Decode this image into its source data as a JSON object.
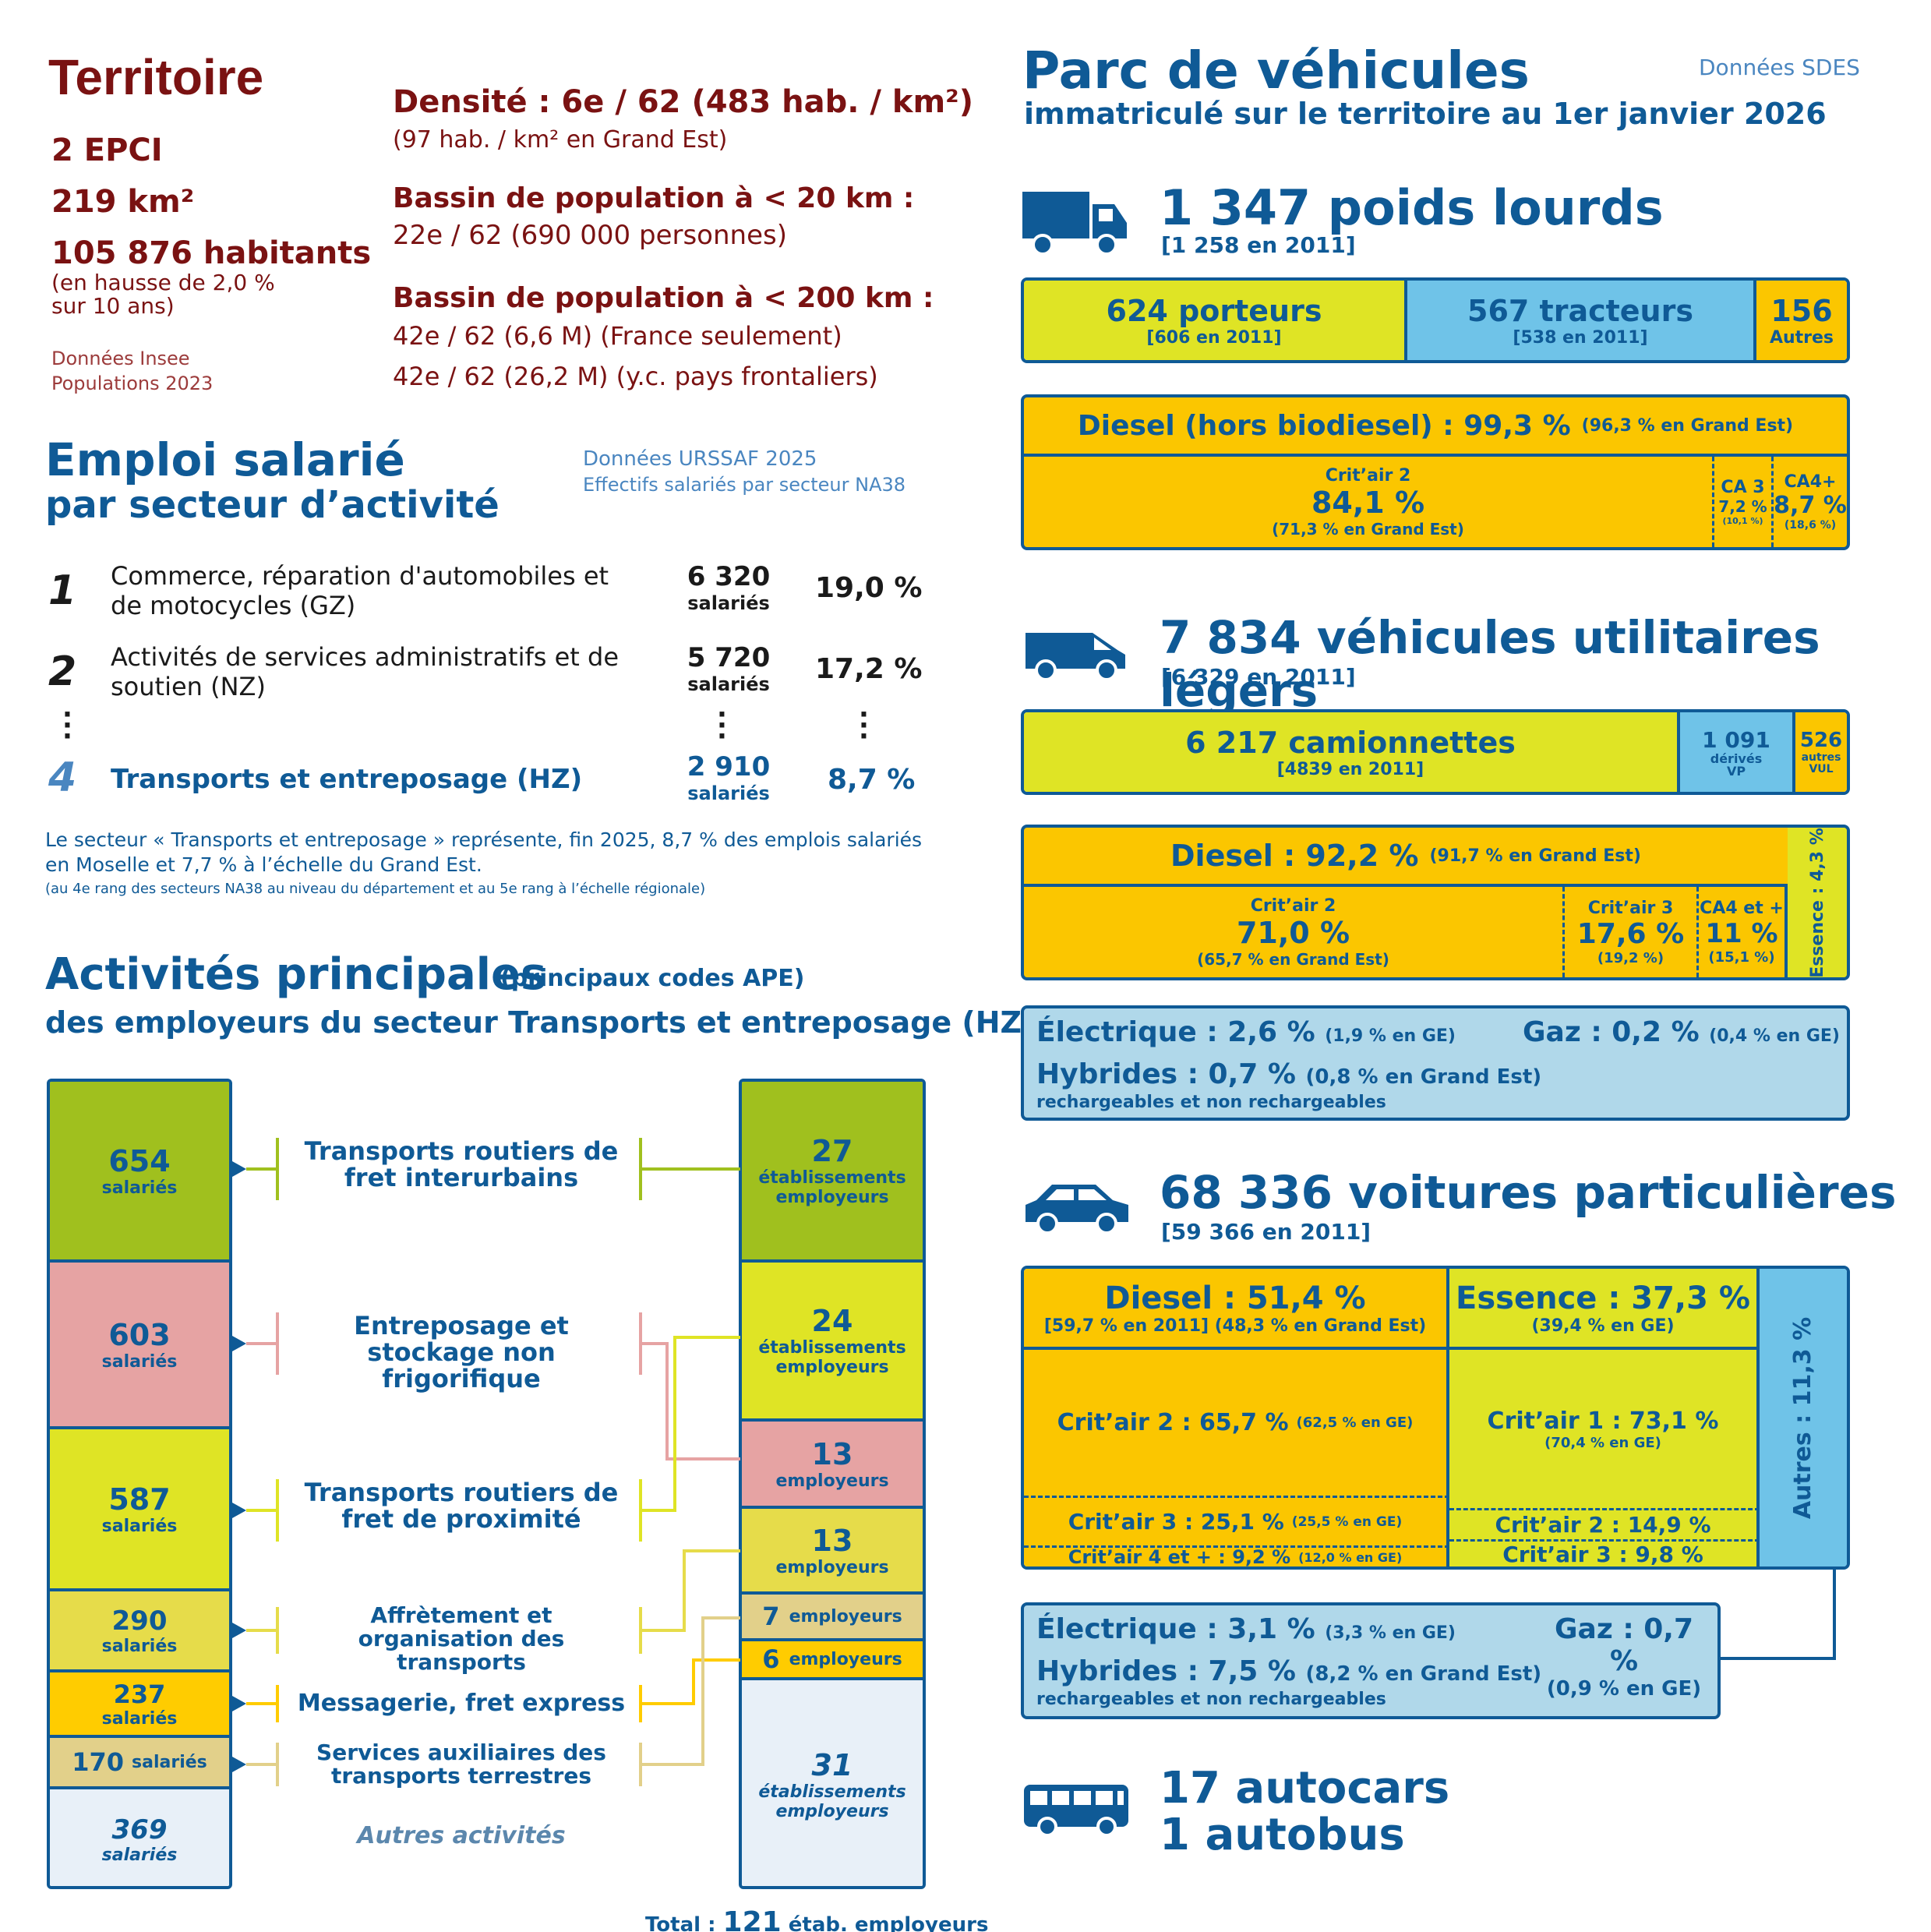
{
  "territoire": {
    "title": "Territoire",
    "epci": "2 EPCI",
    "surface": "219 km²",
    "habitants": "105 876 habitants",
    "hausse": "(en hausse de 2,0 %",
    "hausse2": "sur 10 ans)",
    "source1": "Données Insee",
    "source2": "Populations 2023",
    "densite": "Densité : 6e / 62 (483 hab. / km²)",
    "densite_ge": "(97 hab. / km² en Grand Est)",
    "bassin20": "Bassin de population à < 20 km :",
    "bassin20_val": "22e / 62 (690 000 personnes)",
    "bassin200": "Bassin de population à < 200 km :",
    "bassin200_fr": "42e / 62 (6,6 M) (France seulement)",
    "bassin200_all": "42e / 62 (26,2 M) (y.c. pays frontaliers)"
  },
  "emploi": {
    "title1": "Emploi salarié",
    "title2": "par secteur d’activité",
    "src1": "Données URSSAF 2025",
    "src2": "Effectifs salariés par secteur NA38",
    "rows": [
      {
        "rank": "1",
        "label": "Commerce, réparation d'automobiles et de motocycles (GZ)",
        "count": "6 320",
        "unit": "salariés",
        "pct": "19,0 %"
      },
      {
        "rank": "2",
        "label": "Activités de services administratifs et de soutien (NZ)",
        "count": "5 720",
        "unit": "salariés",
        "pct": "17,2 %"
      },
      {
        "rank": "4",
        "label": "Transports et entreposage (HZ)",
        "count": "2 910",
        "unit": "salariés",
        "pct": "8,7 %"
      }
    ],
    "note1": "Le secteur « Transports et entreposage » représente, fin 2025, 8,7 % des emplois salariés",
    "note2": "en Moselle et 7,7 % à l’échelle du Grand Est.",
    "note3": "(au 4e rang des secteurs NA38 au niveau du département et au 5e rang à l’échelle régionale)"
  },
  "activites": {
    "title": "Activités principales",
    "title_sub": "(principaux codes APE)",
    "title2": "des employeurs du secteur Transports et entreposage (HZ)",
    "left": [
      {
        "n": "654",
        "u": "salariés"
      },
      {
        "n": "603",
        "u": "salariés"
      },
      {
        "n": "587",
        "u": "salariés"
      },
      {
        "n": "290",
        "u": "salariés"
      },
      {
        "n": "237",
        "u": "salariés"
      },
      {
        "n": "170",
        "u": "salariés"
      },
      {
        "n": "369",
        "u": "salariés"
      }
    ],
    "labels": [
      "Transports routiers de fret interurbains",
      "Entreposage et stockage non frigorifique",
      "Transports routiers de fret de proximité",
      "Affrètement et organisation des transports",
      "Messagerie, fret express",
      "Services auxiliaires des transports terrestres",
      "Autres activités"
    ],
    "right": [
      {
        "n": "27",
        "u": "établissements employeurs"
      },
      {
        "n": "24",
        "u": "établissements employeurs"
      },
      {
        "n": "13",
        "u": "employeurs"
      },
      {
        "n": "13",
        "u": "employeurs"
      },
      {
        "n": "7",
        "u": "employeurs"
      },
      {
        "n": "6",
        "u": "employeurs"
      },
      {
        "n": "31",
        "u": "établissements employeurs"
      }
    ],
    "total_pre": "Total :",
    "total_n": "121",
    "total_post": "étab. employeurs"
  },
  "parc": {
    "title": "Parc de véhicules",
    "sub": "immatriculé sur le territoire au 1er janvier 2026",
    "src": "Données SDES",
    "pl": {
      "title": "1 347 poids lourds",
      "prev": "[1 258 en 2011]",
      "porteurs": "624 porteurs",
      "porteurs_prev": "[606 en 2011]",
      "tracteurs": "567 tracteurs",
      "tracteurs_prev": "[538 en 2011]",
      "autres": "156",
      "autres_l": "Autres",
      "diesel": "Diesel (hors biodiesel) : 99,3 %",
      "diesel_ge": "(96,3 % en Grand Est)",
      "c2": "Crit’air 2",
      "c2v": "84,1 %",
      "c2ge": "(71,3 % en Grand Est)",
      "ca3": "CA 3",
      "ca3v": "7,2 %",
      "ca3ge": "(10,1 %)",
      "ca4": "CA4+",
      "ca4v": "8,7 %",
      "ca4ge": "(18,6 %)"
    },
    "vul": {
      "title": "7 834 véhicules utilitaires légers",
      "prev": "[6 329 en 2011]",
      "cam": "6 217 camionnettes",
      "cam_prev": "[4839 en 2011]",
      "der": "1 091",
      "der_l": "dérivés VP",
      "aut": "526",
      "aut_l": "autres VUL",
      "diesel": "Diesel : 92,2 %",
      "diesel_ge": "(91,7 % en Grand Est)",
      "ess": "Essence : 4,3 %",
      "c2": "Crit’air 2",
      "c2v": "71,0 %",
      "c2ge": "(65,7 % en Grand Est)",
      "c3": "Crit’air 3",
      "c3v": "17,6 %",
      "c3ge": "(19,2 %)",
      "c4": "CA4 et +",
      "c4v": "11 %",
      "c4ge": "(15,1 %)",
      "elec": "Électrique : 2,6 %",
      "elec_ge": "(1,9 % en GE)",
      "gaz": "Gaz : 0,2 %",
      "gaz_ge": "(0,4 % en GE)",
      "hyb": "Hybrides : 0,7 %",
      "hyb_ge": "(0,8 % en Grand Est)",
      "hyb_sub": "rechargeables et non rechargeables"
    },
    "vp": {
      "title": "68 336 voitures particulières",
      "prev": "[59 366 en 2011]",
      "diesel": "Diesel : 51,4 %",
      "diesel_sub": "[59,7 % en 2011]  (48,3 % en Grand Est)",
      "ess": "Essence : 37,3 %",
      "ess_sub": "(39,4 % en GE)",
      "autres": "Autres : 11,3 %",
      "d_c2": "Crit’air 2 : 65,7 %",
      "d_c2ge": "(62,5 % en GE)",
      "d_c3": "Crit’air 3 : 25,1 %",
      "d_c3ge": "(25,5 % en GE)",
      "d_c4": "Crit’air 4 et + : 9,2 %",
      "d_c4ge": "(12,0 % en GE)",
      "e_c1": "Crit’air 1 : 73,1 %",
      "e_c1ge": "(70,4 % en GE)",
      "e_c2": "Crit’air 2 : 14,9 %",
      "e_c3": "Crit’air 3 : 9,8 %",
      "elec": "Électrique : 3,1 %",
      "elec_ge": "(3,3 % en GE)",
      "gaz": "Gaz : 0,7 %",
      "gaz_ge": "(0,9 % en GE)",
      "hyb": "Hybrides : 7,5 %",
      "hyb_ge": "(8,2 % en Grand Est)",
      "hyb_sub": "rechargeables et non rechargeables"
    },
    "bus": {
      "autocars": "17 autocars",
      "autobus": "1 autobus"
    }
  },
  "colors": {
    "green": "#a0c01e",
    "pink": "#e6a3a3",
    "lime": "#dfe425",
    "khaki": "#e6dc4a",
    "yellow": "#ffcc00",
    "tan": "#e2d08a",
    "pale": "#e8f0f8",
    "orange": "#fbc600",
    "lightblue": "#6fc3e8",
    "paleblue": "#b0d8ea",
    "navy": "#0f5a96",
    "darkred": "#7a1212"
  }
}
